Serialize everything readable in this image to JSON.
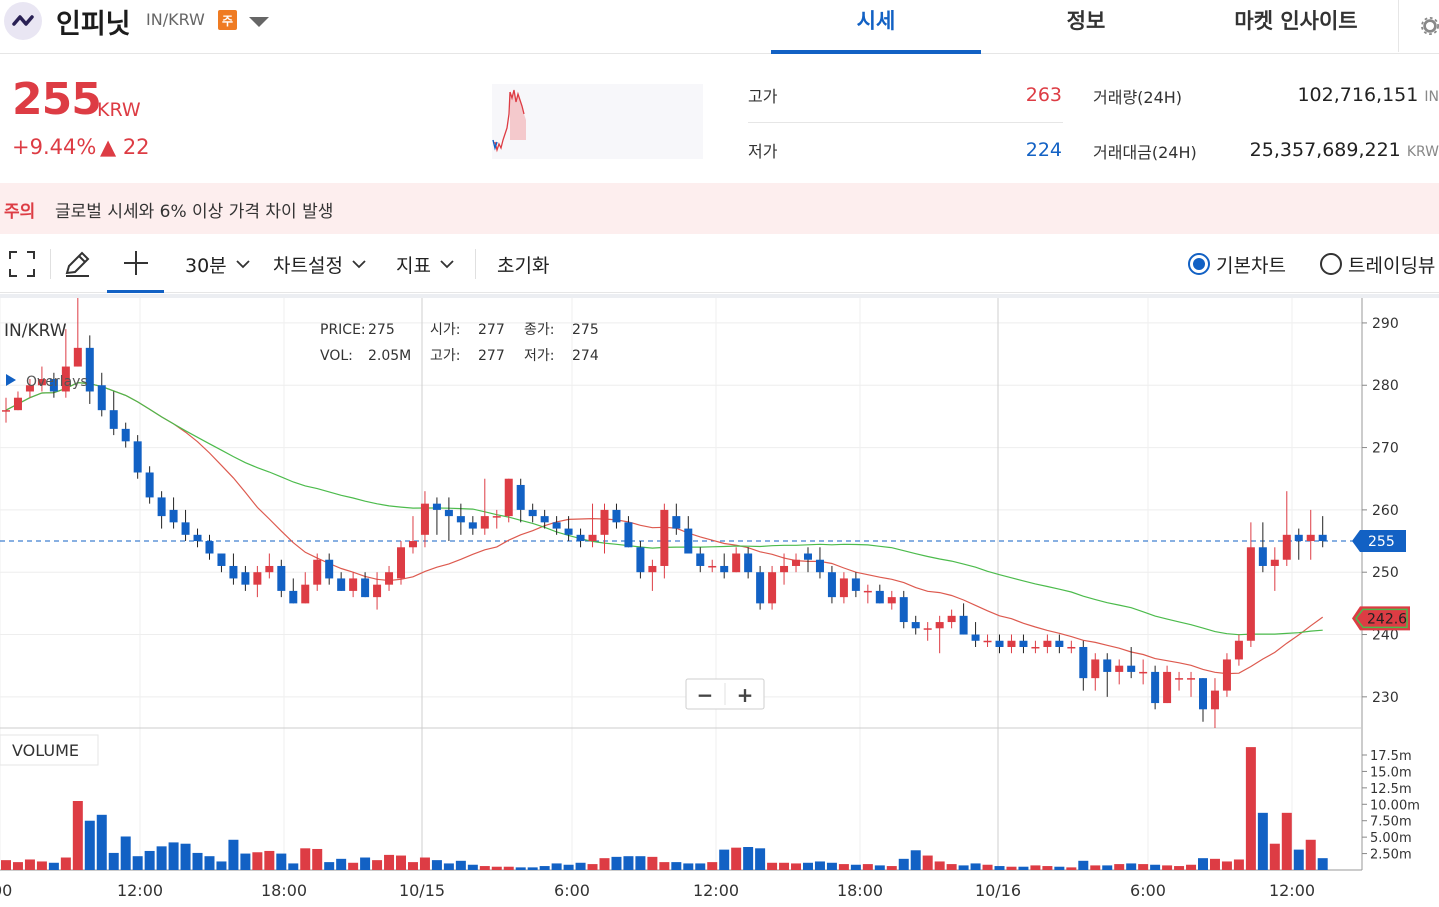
{
  "header": {
    "coin_name": "인피닛",
    "pair": "IN/KRW",
    "badge": "주",
    "tabs": [
      {
        "label": "시세",
        "active": true
      },
      {
        "label": "정보",
        "active": false
      },
      {
        "label": "마켓 인사이트",
        "active": false
      }
    ]
  },
  "summary": {
    "price": "255",
    "price_unit": "KRW",
    "change_pct": "+9.44%",
    "change_abs": "▲ 22",
    "high_label": "고가",
    "high_value": "263",
    "low_label": "저가",
    "low_value": "224",
    "volume_label": "거래량(24H)",
    "volume_value": "102,716,151",
    "volume_unit": "IN",
    "amount_label": "거래대금(24H)",
    "amount_value": "25,357,689,221",
    "amount_unit": "KRW"
  },
  "warning": {
    "tag": "주의",
    "text": "글로벌 시세와 6% 이상 가격 차이 발생"
  },
  "toolbar": {
    "interval": "30분",
    "chart_settings": "차트설정",
    "indicators": "지표",
    "reset": "초기화",
    "basic_chart": "기본차트",
    "trading_view": "트레이딩뷰"
  },
  "chart_data": {
    "type": "candlestick",
    "symbol": "IN/KRW",
    "overlays_label": "Overlays",
    "legend": {
      "price_label": "PRICE:",
      "price": "275",
      "vol_label": "VOL:",
      "vol": "2.05M",
      "open_label": "시가:",
      "open": "277",
      "high_label": "고가:",
      "high": "277",
      "close_label": "종가:",
      "close": "275",
      "low_label": "저가:",
      "low": "274"
    },
    "y_ticks": [
      "290",
      "280",
      "270",
      "260",
      "250",
      "240",
      "230"
    ],
    "y_range": [
      225,
      294
    ],
    "x_ticks": [
      "00",
      "12:00",
      "18:00",
      "10/15",
      "6:00",
      "12:00",
      "18:00",
      "10/16",
      "6:00",
      "12:00"
    ],
    "current_price": 255,
    "current_price_label": "255",
    "ma_label": "242.6",
    "zoom_out": "−",
    "zoom_in": "+",
    "volume_label": "VOLUME",
    "volume_ticks": [
      "17.5m",
      "15.0m",
      "12.5m",
      "10.00m",
      "7.50m",
      "5.00m",
      "2.50m"
    ],
    "candles": [
      [
        276,
        276,
        278,
        274
      ],
      [
        276,
        278,
        279,
        276
      ],
      [
        279,
        280,
        281,
        278
      ],
      [
        280,
        281,
        283,
        279
      ],
      [
        281,
        279,
        282,
        278
      ],
      [
        279,
        283,
        289,
        278
      ],
      [
        283,
        286,
        294,
        283
      ],
      [
        286,
        279,
        288,
        277
      ],
      [
        280,
        276,
        282,
        275
      ],
      [
        276,
        273,
        279,
        272
      ],
      [
        273,
        271,
        274,
        270
      ],
      [
        271,
        266,
        272,
        265
      ],
      [
        266,
        262,
        267,
        261
      ],
      [
        262,
        259,
        263,
        257
      ],
      [
        260,
        258,
        262,
        257
      ],
      [
        258,
        256,
        260,
        255
      ],
      [
        256,
        255,
        257,
        254
      ],
      [
        255,
        253,
        256,
        252
      ],
      [
        253,
        251,
        253,
        250
      ],
      [
        251,
        249,
        253,
        248
      ],
      [
        250,
        248,
        251,
        247
      ],
      [
        248,
        250,
        251,
        246
      ],
      [
        250,
        251,
        253,
        249
      ],
      [
        251,
        247,
        252,
        246
      ],
      [
        247,
        245,
        249,
        245
      ],
      [
        245,
        248,
        250,
        245
      ],
      [
        248,
        252,
        253,
        247
      ],
      [
        252,
        249,
        253,
        248
      ],
      [
        249,
        247,
        250,
        247
      ],
      [
        247,
        249,
        250,
        246
      ],
      [
        249,
        246,
        250,
        246
      ],
      [
        246,
        248,
        250,
        244
      ],
      [
        248,
        250,
        251,
        247
      ],
      [
        249,
        254,
        255,
        248
      ],
      [
        254,
        255,
        259,
        253
      ],
      [
        256,
        261,
        263,
        254
      ],
      [
        261,
        260,
        262,
        256
      ],
      [
        260,
        259,
        262,
        255
      ],
      [
        259,
        258,
        261,
        256
      ],
      [
        258,
        257,
        259,
        256
      ],
      [
        257,
        259,
        265,
        256
      ],
      [
        259,
        259,
        260,
        257
      ],
      [
        259,
        265,
        265,
        258
      ],
      [
        264,
        260,
        265,
        258
      ],
      [
        260,
        259,
        261,
        258
      ],
      [
        259,
        258,
        260,
        257
      ],
      [
        258,
        257,
        259,
        256
      ],
      [
        257,
        256,
        259,
        255
      ],
      [
        256,
        255,
        257,
        254
      ],
      [
        255,
        256,
        261,
        254
      ],
      [
        256,
        260,
        261,
        253
      ],
      [
        260,
        258,
        261,
        257
      ],
      [
        258,
        254,
        259,
        254
      ],
      [
        254,
        250,
        255,
        249
      ],
      [
        250,
        251,
        252,
        247
      ],
      [
        251,
        260,
        261,
        249
      ],
      [
        259,
        257,
        261,
        256
      ],
      [
        257,
        253,
        259,
        253
      ],
      [
        253,
        251,
        254,
        250
      ],
      [
        251,
        251,
        252,
        250
      ],
      [
        251,
        250,
        253,
        249
      ],
      [
        250,
        253,
        254,
        250
      ],
      [
        253,
        250,
        254,
        249
      ],
      [
        250,
        245,
        251,
        244
      ],
      [
        245,
        250,
        251,
        244
      ],
      [
        250,
        251,
        253,
        248
      ],
      [
        251,
        252,
        253,
        250
      ],
      [
        253,
        252,
        254,
        250
      ],
      [
        252,
        250,
        254,
        249
      ],
      [
        250,
        246,
        251,
        245
      ],
      [
        246,
        249,
        250,
        245
      ],
      [
        249,
        247,
        250,
        246
      ],
      [
        247,
        247,
        248,
        245
      ],
      [
        247,
        245,
        248,
        245
      ],
      [
        245,
        246,
        247,
        244
      ],
      [
        246,
        242,
        247,
        241
      ],
      [
        242,
        241,
        243,
        240
      ],
      [
        241,
        241,
        242,
        239
      ],
      [
        241,
        242,
        243,
        237
      ],
      [
        242,
        243,
        244,
        241
      ],
      [
        243,
        240,
        245,
        240
      ],
      [
        240,
        239,
        242,
        238
      ],
      [
        239,
        239,
        240,
        238
      ],
      [
        239,
        238,
        240,
        237
      ],
      [
        238,
        239,
        240,
        237
      ],
      [
        239,
        238,
        240,
        237
      ],
      [
        238,
        238,
        239,
        237
      ],
      [
        238,
        239,
        240,
        237
      ],
      [
        239,
        238,
        240,
        237
      ],
      [
        238,
        238,
        239,
        237
      ],
      [
        238,
        233,
        239,
        231
      ],
      [
        233,
        236,
        237,
        231
      ],
      [
        236,
        234,
        237,
        230
      ],
      [
        234,
        235,
        236,
        232
      ],
      [
        235,
        234,
        238,
        233
      ],
      [
        234,
        234,
        236,
        232
      ],
      [
        234,
        229,
        235,
        228
      ],
      [
        229,
        234,
        235,
        229
      ],
      [
        233,
        233,
        234,
        231
      ],
      [
        233,
        233,
        234,
        230
      ],
      [
        233,
        228,
        233,
        226
      ],
      [
        228,
        231,
        233,
        225
      ],
      [
        231,
        236,
        237,
        230
      ],
      [
        236,
        239,
        240,
        235
      ],
      [
        239,
        254,
        258,
        238
      ],
      [
        254,
        251,
        258,
        250
      ],
      [
        251,
        252,
        254,
        247
      ],
      [
        252,
        256,
        263,
        251
      ],
      [
        256,
        255,
        257,
        252
      ],
      [
        255,
        256,
        260,
        252
      ],
      [
        256,
        255,
        259,
        254
      ]
    ],
    "volumes": [
      1.5,
      1.2,
      1.6,
      1.3,
      1.1,
      1.9,
      10.5,
      7.5,
      8.4,
      2.6,
      5.1,
      2.1,
      2.9,
      3.6,
      4.2,
      4.0,
      2.6,
      2.1,
      1.3,
      4.6,
      2.5,
      2.7,
      2.9,
      2.5,
      1.0,
      3.3,
      3.2,
      1.2,
      1.7,
      1.1,
      1.9,
      1.5,
      2.3,
      2.2,
      1.2,
      1.9,
      1.5,
      1.0,
      1.4,
      0.8,
      0.6,
      0.5,
      0.5,
      0.4,
      0.4,
      0.6,
      1.0,
      0.8,
      1.1,
      0.9,
      1.8,
      2.0,
      2.1,
      2.1,
      2.0,
      1.2,
      1.2,
      1.0,
      1.0,
      1.2,
      3.1,
      3.4,
      3.5,
      3.3,
      1.1,
      1.1,
      1.0,
      1.1,
      1.3,
      1.1,
      0.9,
      0.8,
      0.9,
      0.7,
      0.6,
      1.7,
      3.0,
      2.2,
      1.3,
      0.9,
      0.7,
      1.0,
      0.8,
      0.6,
      0.5,
      0.5,
      0.7,
      0.6,
      0.5,
      0.4,
      1.4,
      0.7,
      0.7,
      0.9,
      1.0,
      0.9,
      0.8,
      0.7,
      0.6,
      0.8,
      1.8,
      1.7,
      1.3,
      1.6,
      18.7,
      8.7,
      4.0,
      8.7,
      3.1,
      4.6,
      1.8
    ]
  }
}
